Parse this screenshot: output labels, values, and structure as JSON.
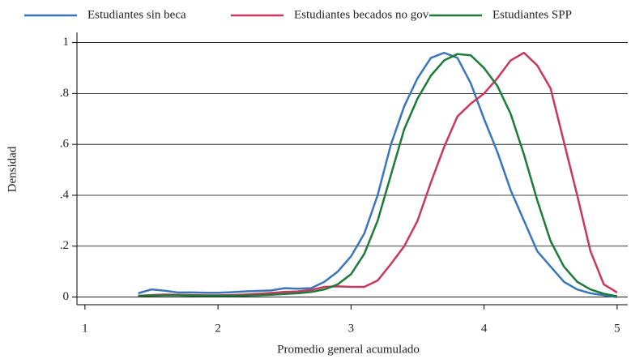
{
  "chart_data": {
    "type": "line",
    "xlabel": "Promedio general acumulado",
    "ylabel": "Densidad",
    "x": [
      1.4,
      1.5,
      1.6,
      1.7,
      1.8,
      1.9,
      2.0,
      2.1,
      2.2,
      2.3,
      2.4,
      2.5,
      2.6,
      2.7,
      2.8,
      2.9,
      3.0,
      3.1,
      3.2,
      3.3,
      3.4,
      3.5,
      3.6,
      3.7,
      3.8,
      3.9,
      4.0,
      4.1,
      4.2,
      4.3,
      4.4,
      4.5,
      4.6,
      4.7,
      4.8,
      4.9,
      5.0
    ],
    "series": [
      {
        "name": "Estudiantes sin beca",
        "color": "#3a76b8",
        "values": [
          0.015,
          0.03,
          0.025,
          0.018,
          0.018,
          0.017,
          0.017,
          0.019,
          0.022,
          0.024,
          0.026,
          0.035,
          0.033,
          0.035,
          0.06,
          0.1,
          0.16,
          0.25,
          0.4,
          0.6,
          0.75,
          0.86,
          0.94,
          0.96,
          0.94,
          0.84,
          0.7,
          0.57,
          0.42,
          0.3,
          0.18,
          0.12,
          0.06,
          0.03,
          0.015,
          0.007,
          0.0
        ]
      },
      {
        "name": "Estudiantes becados no gov",
        "color": "#c8385e",
        "values": [
          0.005,
          0.008,
          0.01,
          0.009,
          0.008,
          0.007,
          0.007,
          0.008,
          0.01,
          0.013,
          0.016,
          0.02,
          0.022,
          0.028,
          0.04,
          0.042,
          0.04,
          0.04,
          0.065,
          0.13,
          0.2,
          0.3,
          0.45,
          0.59,
          0.71,
          0.76,
          0.8,
          0.86,
          0.93,
          0.96,
          0.91,
          0.82,
          0.61,
          0.4,
          0.18,
          0.05,
          0.018
        ]
      },
      {
        "name": "Estudiantes SPP",
        "color": "#1e7a3a",
        "values": [
          0.005,
          0.006,
          0.007,
          0.007,
          0.006,
          0.005,
          0.005,
          0.005,
          0.006,
          0.007,
          0.009,
          0.012,
          0.015,
          0.02,
          0.03,
          0.05,
          0.09,
          0.17,
          0.3,
          0.48,
          0.66,
          0.78,
          0.87,
          0.93,
          0.955,
          0.95,
          0.9,
          0.83,
          0.72,
          0.56,
          0.38,
          0.22,
          0.12,
          0.06,
          0.03,
          0.013,
          0.003
        ]
      }
    ],
    "xlim": [
      0.94,
      5.08
    ],
    "xticks": [
      1,
      2,
      3,
      4,
      5
    ],
    "ylim": [
      -0.03,
      1.04
    ],
    "yticks": [
      0,
      {
        "value": 0.2,
        "label": ".2"
      },
      {
        "value": 0.4,
        "label": ".4"
      },
      {
        "value": 0.6,
        "label": ".6"
      },
      {
        "value": 0.8,
        "label": ".8"
      },
      1
    ],
    "grid": true,
    "legend": "top"
  }
}
